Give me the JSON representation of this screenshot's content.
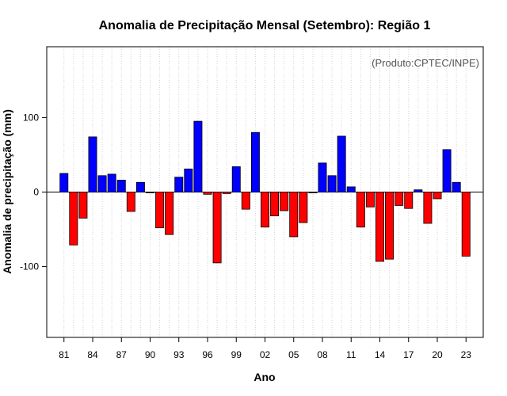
{
  "chart_data": {
    "type": "bar",
    "title": "Anomalia de Precipitação Mensal (Setembro): Região 1",
    "credit": "(Produto:CPTEC/INPE)",
    "xlabel": "Ano",
    "ylabel": "Anomalia de precipitação (mm)",
    "ylim": [
      -195,
      195
    ],
    "yticks": [
      -100,
      0,
      100
    ],
    "ytick_labels": [
      "-100",
      "0",
      "100"
    ],
    "xtick_labels": [
      "81",
      "84",
      "87",
      "90",
      "93",
      "96",
      "99",
      "02",
      "05",
      "08",
      "11",
      "14",
      "17",
      "20",
      "23"
    ],
    "colors": {
      "positive": "#0000ff",
      "negative": "#ff0000"
    },
    "categories": [
      "1981",
      "1982",
      "1983",
      "1984",
      "1985",
      "1986",
      "1987",
      "1988",
      "1989",
      "1990",
      "1991",
      "1992",
      "1993",
      "1994",
      "1995",
      "1996",
      "1997",
      "1998",
      "1999",
      "2000",
      "2001",
      "2002",
      "2003",
      "2004",
      "2005",
      "2006",
      "2007",
      "2008",
      "2009",
      "2010",
      "2011",
      "2012",
      "2013",
      "2014",
      "2015",
      "2016",
      "2017",
      "2018",
      "2019",
      "2020",
      "2021",
      "2022",
      "2023"
    ],
    "values": [
      25,
      -71,
      -35,
      74,
      22,
      24,
      16,
      -26,
      13,
      -1,
      -48,
      -57,
      20,
      31,
      95,
      -3,
      -95,
      -2,
      34,
      -23,
      80,
      -47,
      -32,
      -25,
      -60,
      -41,
      -1,
      39,
      22,
      75,
      7,
      -47,
      -20,
      -93,
      -90,
      -18,
      -22,
      3,
      -42,
      -9,
      57,
      13,
      -86
    ]
  }
}
